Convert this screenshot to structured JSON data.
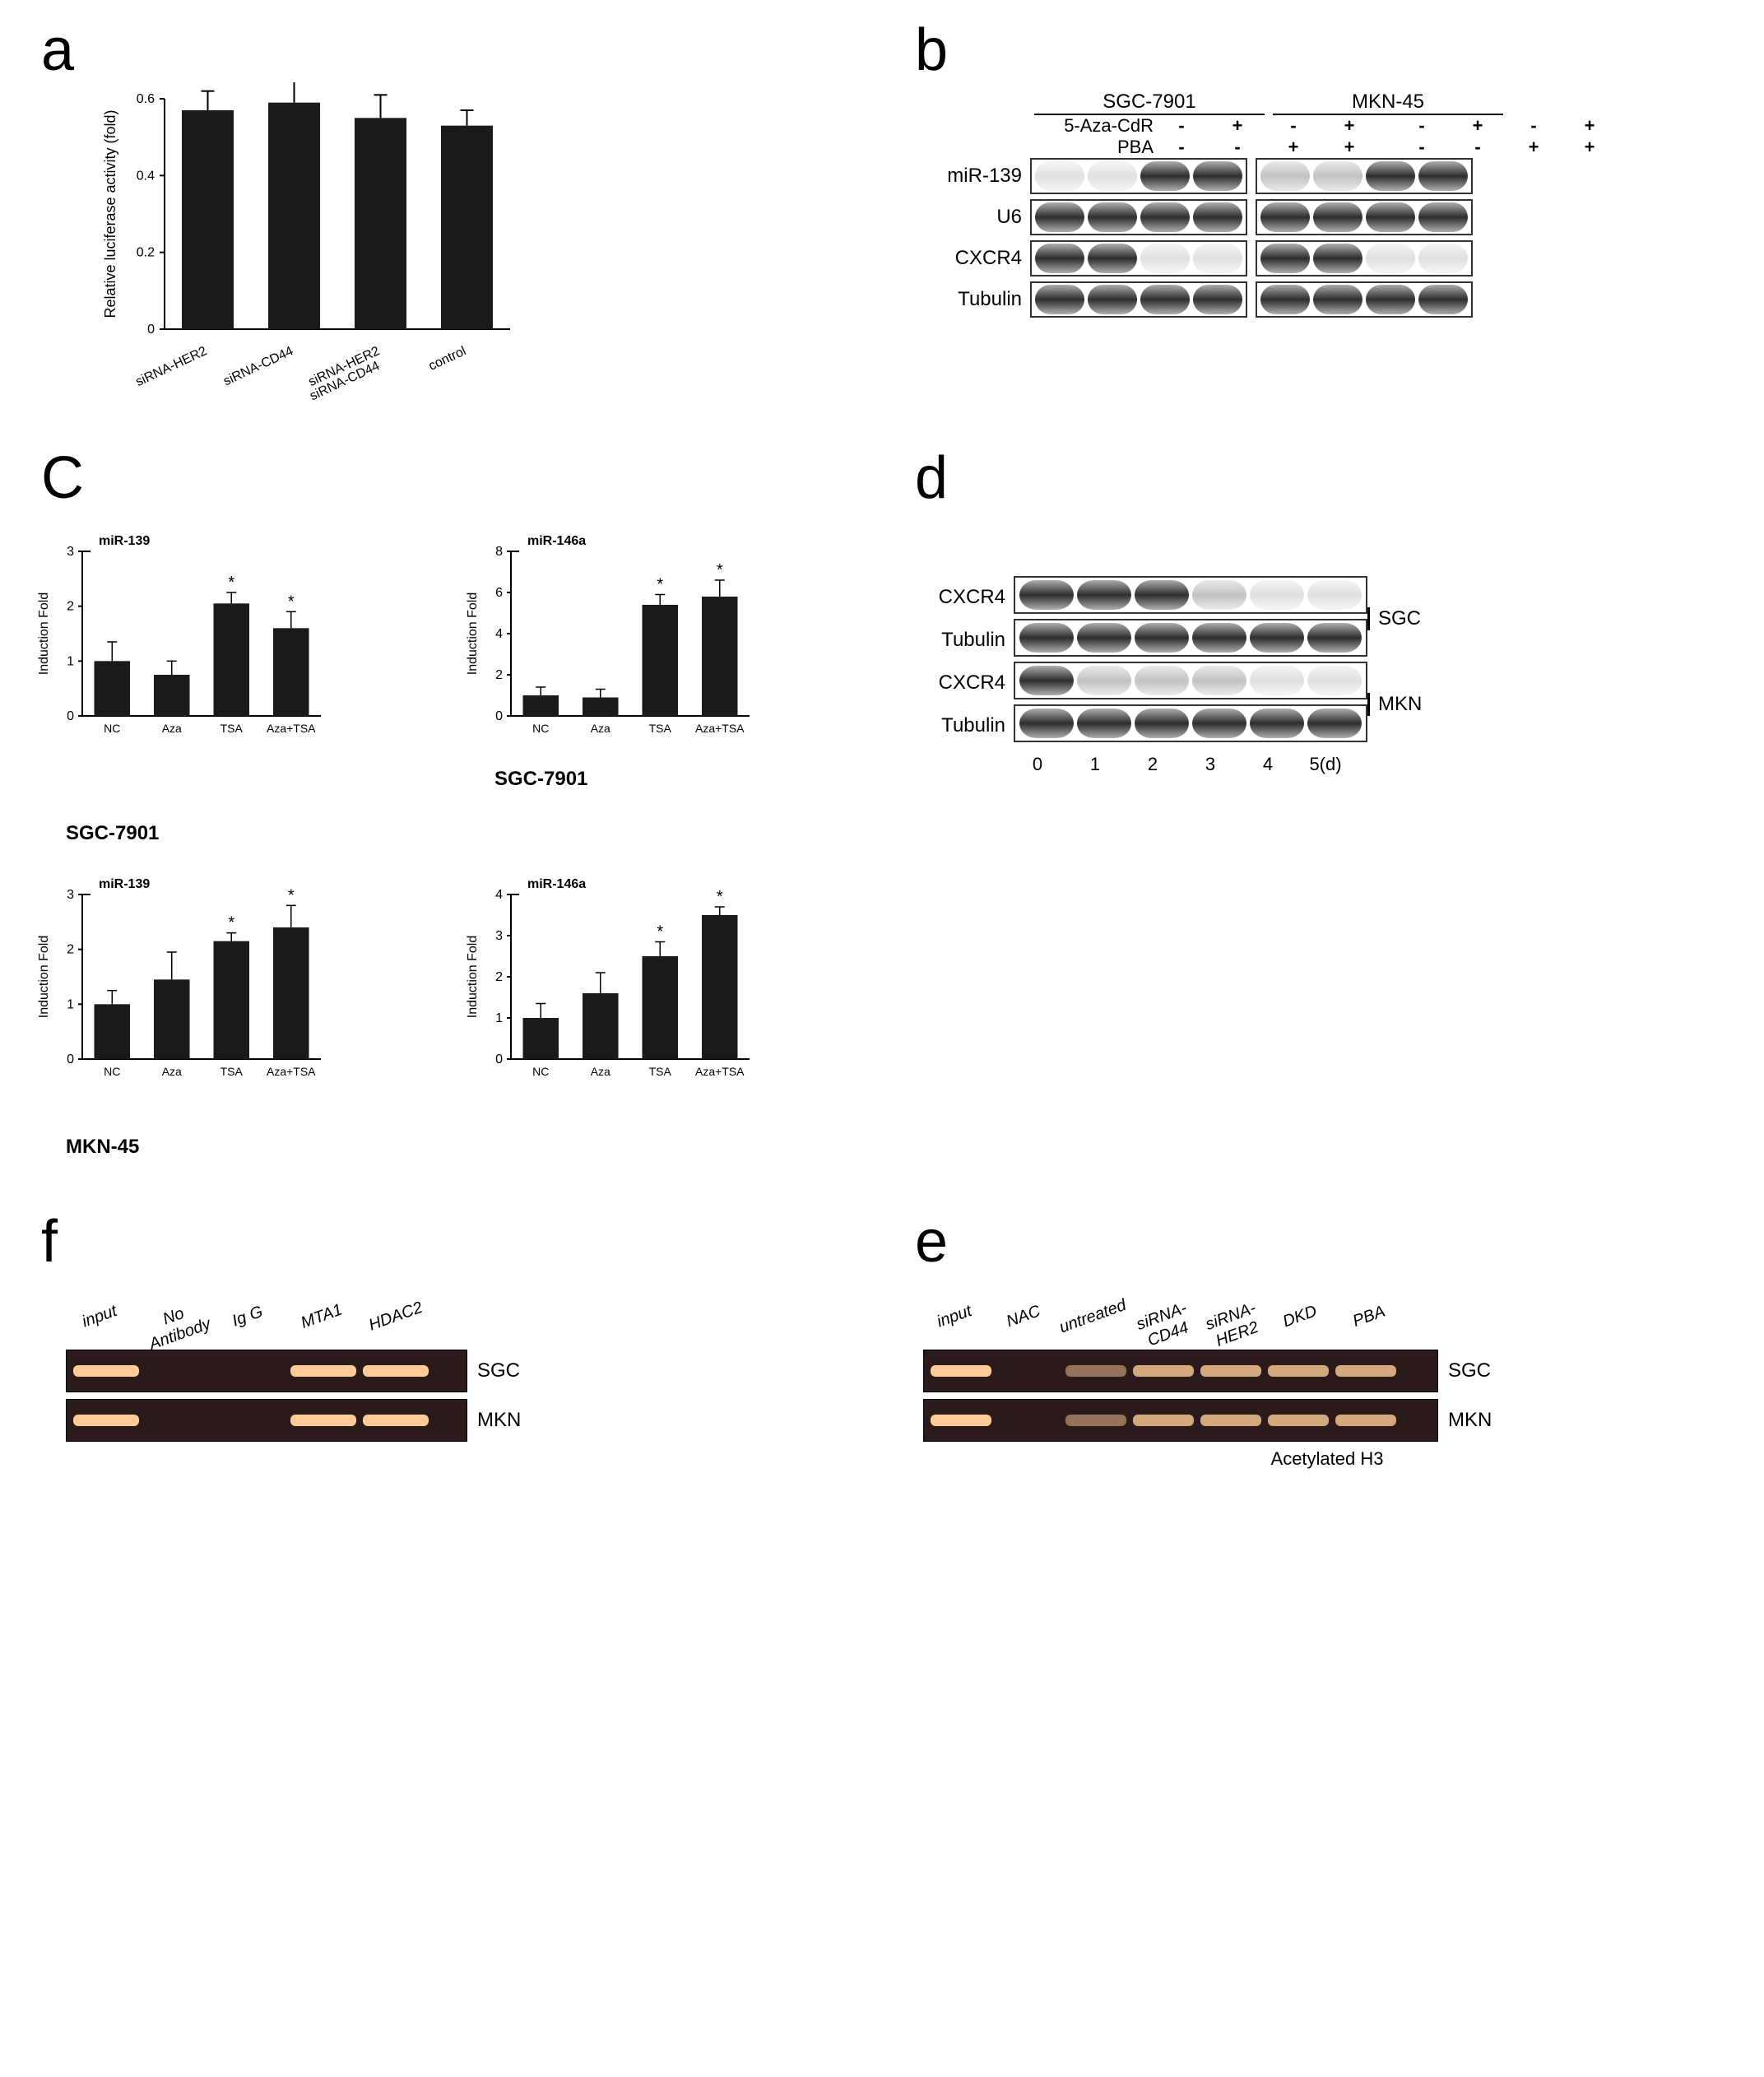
{
  "panel_a": {
    "label": "a",
    "chart": {
      "type": "bar",
      "ylabel": "Relative luciferase activity\n(fold)",
      "ylim": [
        0,
        0.6
      ],
      "yticks": [
        0,
        0.2,
        0.4,
        0.6
      ],
      "categories": [
        "siRNA-HER2",
        "siRNA-CD44",
        "siRNA-HER2\nsiRNA-CD44",
        "control"
      ],
      "values": [
        0.57,
        0.59,
        0.55,
        0.53
      ],
      "errors": [
        0.05,
        0.08,
        0.06,
        0.04
      ],
      "bar_color": "#1a1a1a",
      "label_fontsize": 18,
      "tick_fontsize": 16
    }
  },
  "panel_b": {
    "label": "b",
    "cell_lines": [
      "SGC-7901",
      "MKN-45"
    ],
    "treatments": {
      "5-Aza-CdR": [
        "-",
        "+",
        "-",
        "+",
        "-",
        "+",
        "-",
        "+"
      ],
      "PBA": [
        "-",
        "-",
        "+",
        "+",
        "-",
        "-",
        "+",
        "+"
      ]
    },
    "rows": [
      {
        "label": "miR-139",
        "intensities_sgc": [
          "light",
          "light",
          "dark",
          "dark"
        ],
        "intensities_mkn": [
          "med",
          "med",
          "dark",
          "dark"
        ]
      },
      {
        "label": "U6",
        "intensities_sgc": [
          "dark",
          "dark",
          "dark",
          "dark"
        ],
        "intensities_mkn": [
          "dark",
          "dark",
          "dark",
          "dark"
        ]
      },
      {
        "label": "CXCR4",
        "intensities_sgc": [
          "dark",
          "dark",
          "light",
          "light"
        ],
        "intensities_mkn": [
          "dark",
          "dark",
          "light",
          "light"
        ]
      },
      {
        "label": "Tubulin",
        "intensities_sgc": [
          "dark",
          "dark",
          "dark",
          "dark"
        ],
        "intensities_mkn": [
          "dark",
          "dark",
          "dark",
          "dark"
        ]
      }
    ]
  },
  "panel_c": {
    "label": "C",
    "charts": [
      {
        "title": "miR-139",
        "cell": "SGC-7901",
        "ylim": [
          0,
          3
        ],
        "yticks": [
          0,
          1,
          2,
          3
        ],
        "categories": [
          "NC",
          "Aza",
          "TSA",
          "Aza+TSA"
        ],
        "values": [
          1.0,
          0.75,
          2.05,
          1.6
        ],
        "errors": [
          0.35,
          0.25,
          0.2,
          0.3
        ],
        "sig": [
          false,
          false,
          true,
          true
        ]
      },
      {
        "title": "miR-146a",
        "cell": "SGC-7901",
        "ylim": [
          0,
          8
        ],
        "yticks": [
          0,
          2,
          4,
          6,
          8
        ],
        "categories": [
          "NC",
          "Aza",
          "TSA",
          "Aza+TSA"
        ],
        "values": [
          1.0,
          0.9,
          5.4,
          5.8
        ],
        "errors": [
          0.4,
          0.4,
          0.5,
          0.8
        ],
        "sig": [
          false,
          false,
          true,
          true
        ]
      },
      {
        "title": "miR-139",
        "cell": "MKN-45",
        "ylim": [
          0,
          3
        ],
        "yticks": [
          0,
          1,
          2,
          3
        ],
        "categories": [
          "NC",
          "Aza",
          "TSA",
          "Aza+TSA"
        ],
        "values": [
          1.0,
          1.45,
          2.15,
          2.4
        ],
        "errors": [
          0.25,
          0.5,
          0.15,
          0.4
        ],
        "sig": [
          false,
          false,
          true,
          true
        ]
      },
      {
        "title": "miR-146a",
        "cell": "MKN-45",
        "ylim": [
          0,
          4
        ],
        "yticks": [
          0,
          1,
          2,
          3,
          4
        ],
        "categories": [
          "NC",
          "Aza",
          "TSA",
          "Aza+TSA"
        ],
        "values": [
          1.0,
          1.6,
          2.5,
          3.5
        ],
        "errors": [
          0.35,
          0.5,
          0.35,
          0.2
        ],
        "sig": [
          false,
          false,
          true,
          true
        ]
      }
    ],
    "ylabel": "Induction Fold",
    "bar_color": "#1a1a1a",
    "cell_labels": [
      "SGC-7901",
      "MKN-45"
    ]
  },
  "panel_d": {
    "label": "d",
    "x_labels": [
      "0",
      "1",
      "2",
      "3",
      "4",
      "5(d)"
    ],
    "blocks": [
      {
        "cell": "SGC",
        "rows": [
          {
            "label": "CXCR4",
            "intensities": [
              "dark",
              "dark",
              "dark",
              "med",
              "light",
              "light"
            ]
          },
          {
            "label": "Tubulin",
            "intensities": [
              "dark",
              "dark",
              "dark",
              "dark",
              "dark",
              "dark"
            ]
          }
        ]
      },
      {
        "cell": "MKN",
        "rows": [
          {
            "label": "CXCR4",
            "intensities": [
              "dark",
              "med",
              "med",
              "med",
              "light",
              "light"
            ]
          },
          {
            "label": "Tubulin",
            "intensities": [
              "dark",
              "dark",
              "dark",
              "dark",
              "dark",
              "dark"
            ]
          }
        ]
      }
    ]
  },
  "panel_e": {
    "label": "e",
    "columns": [
      "input",
      "NAC",
      "untreated",
      "siRNA-CD44",
      "siRNA-HER2",
      "DKD",
      "PBA"
    ],
    "rows": [
      {
        "cell": "SGC",
        "bands": [
          "strong",
          "none",
          "faint",
          "med",
          "med",
          "med",
          "med"
        ]
      },
      {
        "cell": "MKN",
        "bands": [
          "strong",
          "none",
          "faint",
          "med",
          "med",
          "med",
          "med"
        ]
      }
    ],
    "caption": "Acetylated H3"
  },
  "panel_f": {
    "label": "f",
    "columns": [
      "input",
      "No Antibody",
      "Ig G",
      "MTA1",
      "HDAC2"
    ],
    "rows": [
      {
        "cell": "SGC",
        "bands": [
          "strong",
          "none",
          "none",
          "strong",
          "strong"
        ]
      },
      {
        "cell": "MKN",
        "bands": [
          "strong",
          "none",
          "none",
          "strong",
          "strong"
        ]
      }
    ]
  },
  "colors": {
    "bar": "#1a1a1a",
    "axis": "#000000",
    "text": "#000000",
    "gel_bg": "#2a1a1a",
    "gel_band": "#ffcc99"
  }
}
